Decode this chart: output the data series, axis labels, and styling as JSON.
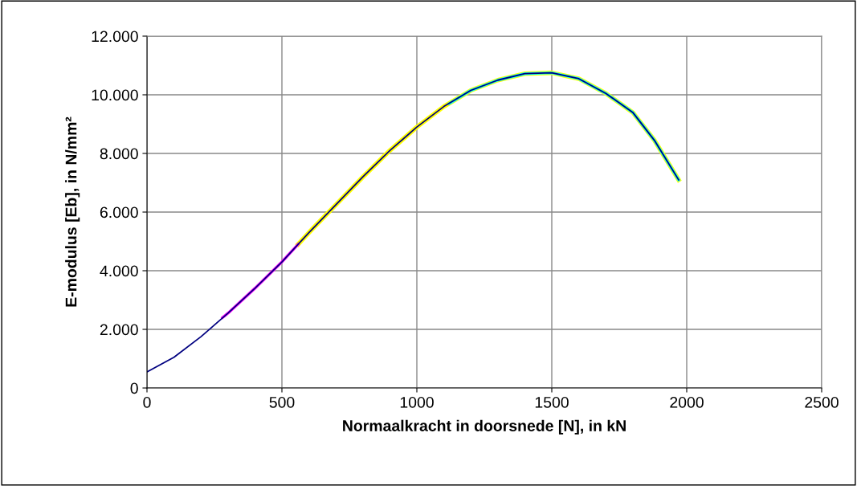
{
  "chart_data": {
    "type": "line",
    "xlabel": "Normaalkracht in doorsnede [N], in kN",
    "ylabel": "E-modulus [Eb], in N/mm²",
    "xlim": [
      0,
      2500
    ],
    "xticks": [
      0,
      500,
      1000,
      1500,
      2000,
      2500
    ],
    "ylim": [
      0,
      12000
    ],
    "yticks": [
      {
        "value": 0,
        "label": "0"
      },
      {
        "value": 2000,
        "label": "2.000"
      },
      {
        "value": 4000,
        "label": "4.000"
      },
      {
        "value": 6000,
        "label": "6.000"
      },
      {
        "value": 8000,
        "label": "8.000"
      },
      {
        "value": 10000,
        "label": "10.000"
      },
      {
        "value": 12000,
        "label": "12.000"
      }
    ],
    "grid": true,
    "marker": "none",
    "series": [
      {
        "color": "#ffff00",
        "x": [
          560,
          600,
          700,
          800,
          900,
          1000,
          1100,
          1200,
          1300,
          1400,
          1500,
          1600,
          1700,
          1800,
          1880,
          1970
        ],
        "values": [
          4900,
          5300,
          6250,
          7200,
          8100,
          8900,
          9600,
          10150,
          10500,
          10720,
          10750,
          10550,
          10050,
          9400,
          8450,
          7100
        ]
      },
      {
        "color": "#00ffff",
        "x": [
          1120,
          1200,
          1300,
          1400,
          1500,
          1600,
          1700,
          1800,
          1880,
          1970
        ],
        "values": [
          9700,
          10150,
          10500,
          10720,
          10750,
          10550,
          10050,
          9400,
          8450,
          7100
        ]
      },
      {
        "color": "#ff00ff",
        "x": [
          280,
          300,
          400,
          500,
          560
        ],
        "values": [
          2400,
          2550,
          3400,
          4300,
          4900
        ]
      },
      {
        "color": "#000080",
        "x": [
          0,
          100,
          200,
          300,
          400,
          500,
          560,
          600,
          700,
          800,
          900,
          1000,
          1100,
          1200,
          1300,
          1400,
          1500,
          1600,
          1700,
          1800,
          1880,
          1970
        ],
        "values": [
          550,
          1050,
          1750,
          2550,
          3400,
          4300,
          4900,
          5300,
          6250,
          7200,
          8100,
          8900,
          9600,
          10150,
          10500,
          10720,
          10750,
          10550,
          10050,
          9400,
          8450,
          7100
        ]
      }
    ]
  }
}
